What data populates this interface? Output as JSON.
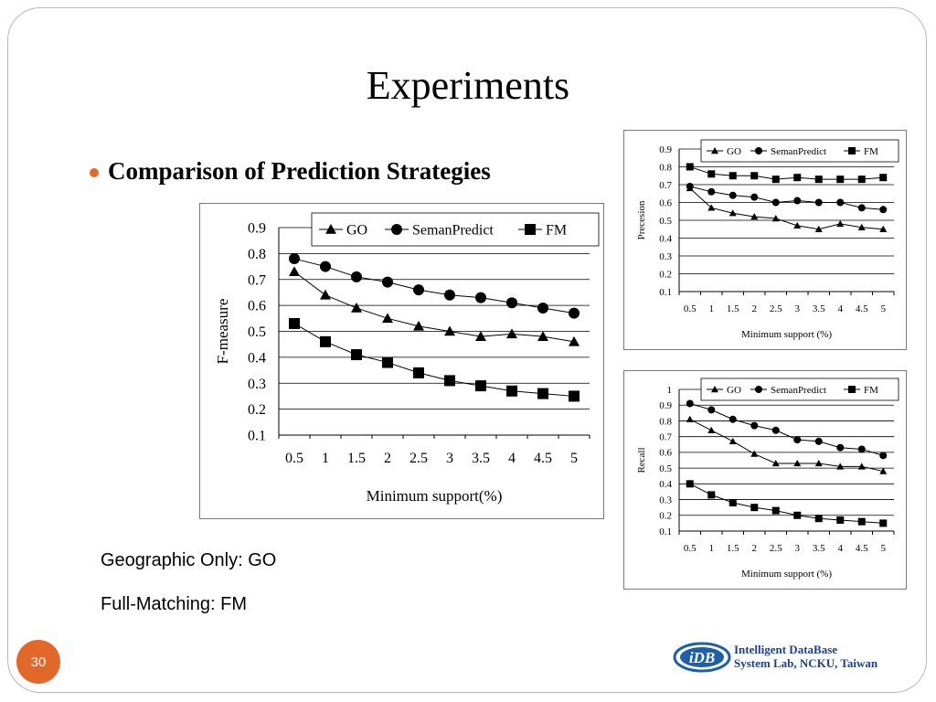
{
  "slide": {
    "title": "Experiments",
    "bullet": "Comparison of Prediction Strategies",
    "notes": [
      "Geographic Only: GO",
      "Full-Matching: FM"
    ],
    "page_number": "30",
    "footer": {
      "line1": "Intelligent DataBase",
      "line2": "System Lab, NCKU, Taiwan"
    },
    "accent_color": "#e2682a"
  },
  "chart_data": [
    {
      "type": "line",
      "id": "fmeasure",
      "xlabel": "Minimum support(%)",
      "ylabel": "F-measure",
      "categories": [
        "0.5",
        "1",
        "1.5",
        "2",
        "2.5",
        "3",
        "3.5",
        "4",
        "4.5",
        "5"
      ],
      "ylim": [
        0.1,
        0.9
      ],
      "yticks": [
        "0.1",
        "0.2",
        "0.3",
        "0.4",
        "0.5",
        "0.6",
        "0.7",
        "0.8",
        "0.9"
      ],
      "grid": true,
      "legend": "top",
      "series": [
        {
          "name": "GO",
          "marker": "triangle",
          "values": [
            0.73,
            0.64,
            0.59,
            0.55,
            0.52,
            0.5,
            0.48,
            0.49,
            0.48,
            0.46
          ]
        },
        {
          "name": "SemanPredict",
          "marker": "circle",
          "values": [
            0.78,
            0.75,
            0.71,
            0.69,
            0.66,
            0.64,
            0.63,
            0.61,
            0.59,
            0.57
          ]
        },
        {
          "name": "FM",
          "marker": "square",
          "values": [
            0.53,
            0.46,
            0.41,
            0.38,
            0.34,
            0.31,
            0.29,
            0.27,
            0.26,
            0.25
          ]
        }
      ]
    },
    {
      "type": "line",
      "id": "precision",
      "xlabel": "Minimum support (%)",
      "ylabel": "Precesion",
      "categories": [
        "0.5",
        "1",
        "1.5",
        "2",
        "2.5",
        "3",
        "3.5",
        "4",
        "4.5",
        "5"
      ],
      "ylim": [
        0.1,
        0.9
      ],
      "yticks": [
        "0.1",
        "0.2",
        "0.3",
        "0.4",
        "0.5",
        "0.6",
        "0.7",
        "0.8",
        "0.9"
      ],
      "grid": true,
      "legend": "top",
      "series": [
        {
          "name": "GO",
          "marker": "triangle",
          "values": [
            0.68,
            0.57,
            0.54,
            0.52,
            0.51,
            0.47,
            0.45,
            0.48,
            0.46,
            0.45
          ]
        },
        {
          "name": "SemanPredict",
          "marker": "circle",
          "values": [
            0.69,
            0.66,
            0.64,
            0.63,
            0.6,
            0.61,
            0.6,
            0.6,
            0.57,
            0.56
          ]
        },
        {
          "name": "FM",
          "marker": "square",
          "values": [
            0.8,
            0.76,
            0.75,
            0.75,
            0.73,
            0.74,
            0.73,
            0.73,
            0.73,
            0.74
          ]
        }
      ]
    },
    {
      "type": "line",
      "id": "recall",
      "xlabel": "Minimum support (%)",
      "ylabel": "Recall",
      "categories": [
        "0.5",
        "1",
        "1.5",
        "2",
        "2.5",
        "3",
        "3.5",
        "4",
        "4.5",
        "5"
      ],
      "ylim": [
        0.1,
        1.0
      ],
      "yticks": [
        "0.1",
        "0.2",
        "0.3",
        "0.4",
        "0.5",
        "0.6",
        "0.7",
        "0.8",
        "0.9",
        "1"
      ],
      "grid": true,
      "legend": "top",
      "series": [
        {
          "name": "GO",
          "marker": "triangle",
          "values": [
            0.81,
            0.74,
            0.67,
            0.59,
            0.53,
            0.53,
            0.53,
            0.51,
            0.51,
            0.48
          ]
        },
        {
          "name": "SemanPredict",
          "marker": "circle",
          "values": [
            0.91,
            0.87,
            0.81,
            0.77,
            0.74,
            0.68,
            0.67,
            0.63,
            0.62,
            0.58
          ]
        },
        {
          "name": "FM",
          "marker": "square",
          "values": [
            0.4,
            0.33,
            0.28,
            0.25,
            0.23,
            0.2,
            0.18,
            0.17,
            0.16,
            0.15
          ]
        }
      ]
    }
  ]
}
